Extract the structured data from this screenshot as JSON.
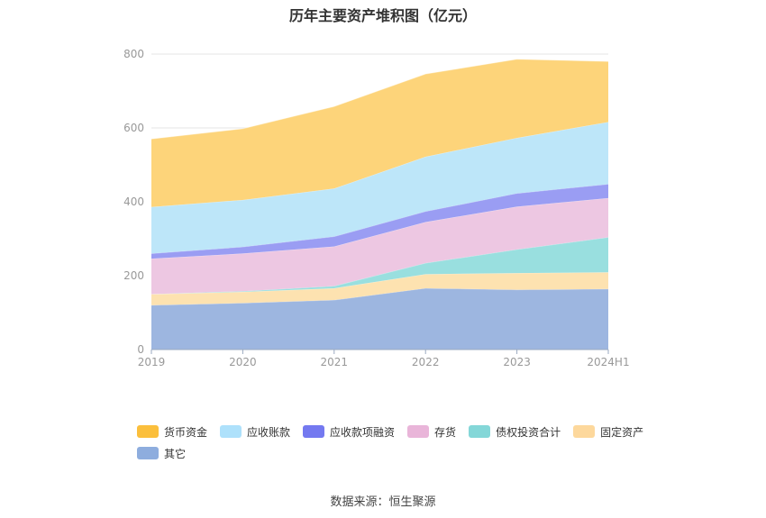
{
  "chart_data": {
    "type": "area",
    "title": "历年主要资产堆积图（亿元）",
    "categories": [
      "2019",
      "2020",
      "2021",
      "2022",
      "2023",
      "2024H1"
    ],
    "ylim": [
      0,
      800
    ],
    "yticks": [
      0,
      200,
      400,
      600,
      800
    ],
    "grid": true,
    "legend_position": "bottom",
    "stacked": true,
    "series": [
      {
        "name": "其它",
        "color": "#9db6e0",
        "values": [
          120,
          126,
          134,
          166,
          162,
          164
        ]
      },
      {
        "name": "固定资产",
        "color": "#fde2b0",
        "values": [
          30,
          30,
          32,
          38,
          45,
          45
        ]
      },
      {
        "name": "债权投资合计",
        "color": "#99dfdf",
        "values": [
          0,
          2,
          6,
          30,
          64,
          95
        ]
      },
      {
        "name": "存货",
        "color": "#edc7e2",
        "values": [
          96,
          102,
          107,
          111,
          116,
          106
        ]
      },
      {
        "name": "应收款项融资",
        "color": "#9a9df3",
        "values": [
          14,
          18,
          27,
          29,
          36,
          38
        ]
      },
      {
        "name": "应收账款",
        "color": "#bde6f9",
        "values": [
          126,
          127,
          130,
          148,
          150,
          168
        ]
      },
      {
        "name": "货币资金",
        "color": "#fdd47a",
        "values": [
          184,
          193,
          222,
          224,
          213,
          164
        ]
      }
    ]
  },
  "legend": [
    {
      "name": "货币资金",
      "color": "#fbbf3c"
    },
    {
      "name": "应收账款",
      "color": "#aee1fb"
    },
    {
      "name": "应收款项融资",
      "color": "#7479f0"
    },
    {
      "name": "存货",
      "color": "#e9b5d9"
    },
    {
      "name": "债权投资合计",
      "color": "#84d7d8"
    },
    {
      "name": "固定资产",
      "color": "#fdd89c"
    },
    {
      "name": "其它",
      "color": "#8eadde"
    }
  ],
  "source": "数据来源：恒生聚源"
}
